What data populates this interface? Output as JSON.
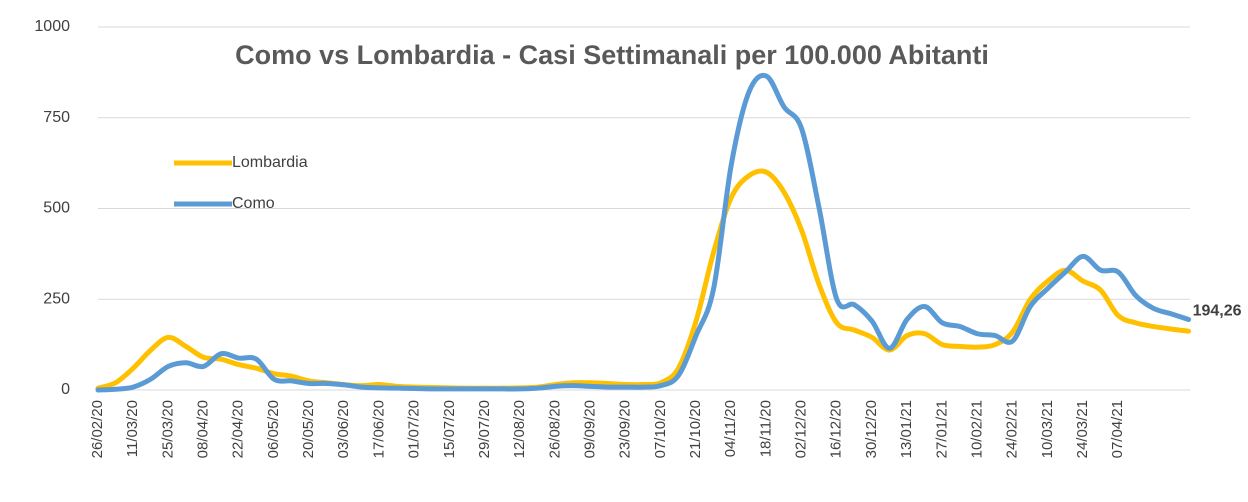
{
  "chart_data": {
    "type": "line",
    "title": "Como vs Lombardia - Casi Settimanali per 100.000 Abitanti",
    "categories": [
      "26/02/20",
      null,
      "11/03/20",
      null,
      "25/03/20",
      null,
      "08/04/20",
      null,
      "22/04/20",
      null,
      "06/05/20",
      null,
      "20/05/20",
      null,
      "03/06/20",
      null,
      "17/06/20",
      null,
      "01/07/20",
      null,
      "15/07/20",
      null,
      "29/07/20",
      null,
      "12/08/20",
      null,
      "26/08/20",
      null,
      "09/09/20",
      null,
      "23/09/20",
      null,
      "07/10/20",
      null,
      "21/10/20",
      null,
      "04/11/20",
      null,
      "18/11/20",
      null,
      "02/12/20",
      null,
      "16/12/20",
      null,
      "30/12/20",
      null,
      "13/01/21",
      null,
      "27/01/21",
      null,
      "10/02/21",
      null,
      "24/02/21",
      null,
      "10/03/21",
      null,
      "24/03/21",
      null,
      "07/04/21",
      null,
      null,
      null,
      null
    ],
    "series": [
      {
        "name": "Lombardia",
        "color": "#FFC000",
        "values": [
          5,
          20,
          60,
          110,
          145,
          120,
          90,
          85,
          70,
          60,
          45,
          38,
          25,
          20,
          15,
          12,
          15,
          10,
          8,
          7,
          6,
          5,
          5,
          5,
          6,
          8,
          15,
          20,
          20,
          18,
          15,
          15,
          20,
          60,
          190,
          380,
          530,
          590,
          600,
          545,
          440,
          290,
          185,
          165,
          145,
          110,
          150,
          155,
          125,
          120,
          118,
          125,
          160,
          250,
          300,
          330,
          300,
          275,
          205,
          185,
          175,
          168,
          162
        ]
      },
      {
        "name": "Como",
        "color": "#5B9BD5",
        "values": [
          0,
          2,
          8,
          30,
          65,
          75,
          65,
          100,
          88,
          85,
          30,
          25,
          18,
          18,
          14,
          8,
          6,
          5,
          4,
          3,
          3,
          3,
          3,
          3,
          3,
          5,
          10,
          12,
          10,
          8,
          8,
          8,
          12,
          40,
          150,
          280,
          620,
          820,
          865,
          780,
          720,
          500,
          250,
          235,
          190,
          115,
          195,
          230,
          185,
          175,
          155,
          150,
          135,
          230,
          280,
          325,
          368,
          330,
          325,
          260,
          225,
          210,
          194.26
        ],
        "value_labels": [
          null,
          null,
          null,
          null,
          null,
          null,
          null,
          null,
          null,
          null,
          null,
          null,
          null,
          null,
          null,
          null,
          null,
          null,
          null,
          null,
          null,
          null,
          null,
          null,
          null,
          null,
          null,
          null,
          null,
          null,
          null,
          null,
          null,
          null,
          null,
          null,
          null,
          null,
          null,
          null,
          null,
          null,
          null,
          null,
          null,
          null,
          null,
          null,
          null,
          null,
          null,
          null,
          null,
          null,
          null,
          null,
          null,
          null,
          null,
          null,
          null,
          null,
          "194,26"
        ]
      }
    ],
    "ylim": [
      0,
      1000
    ],
    "yticks": [
      0,
      250,
      500,
      750,
      1000
    ],
    "grid": true
  }
}
